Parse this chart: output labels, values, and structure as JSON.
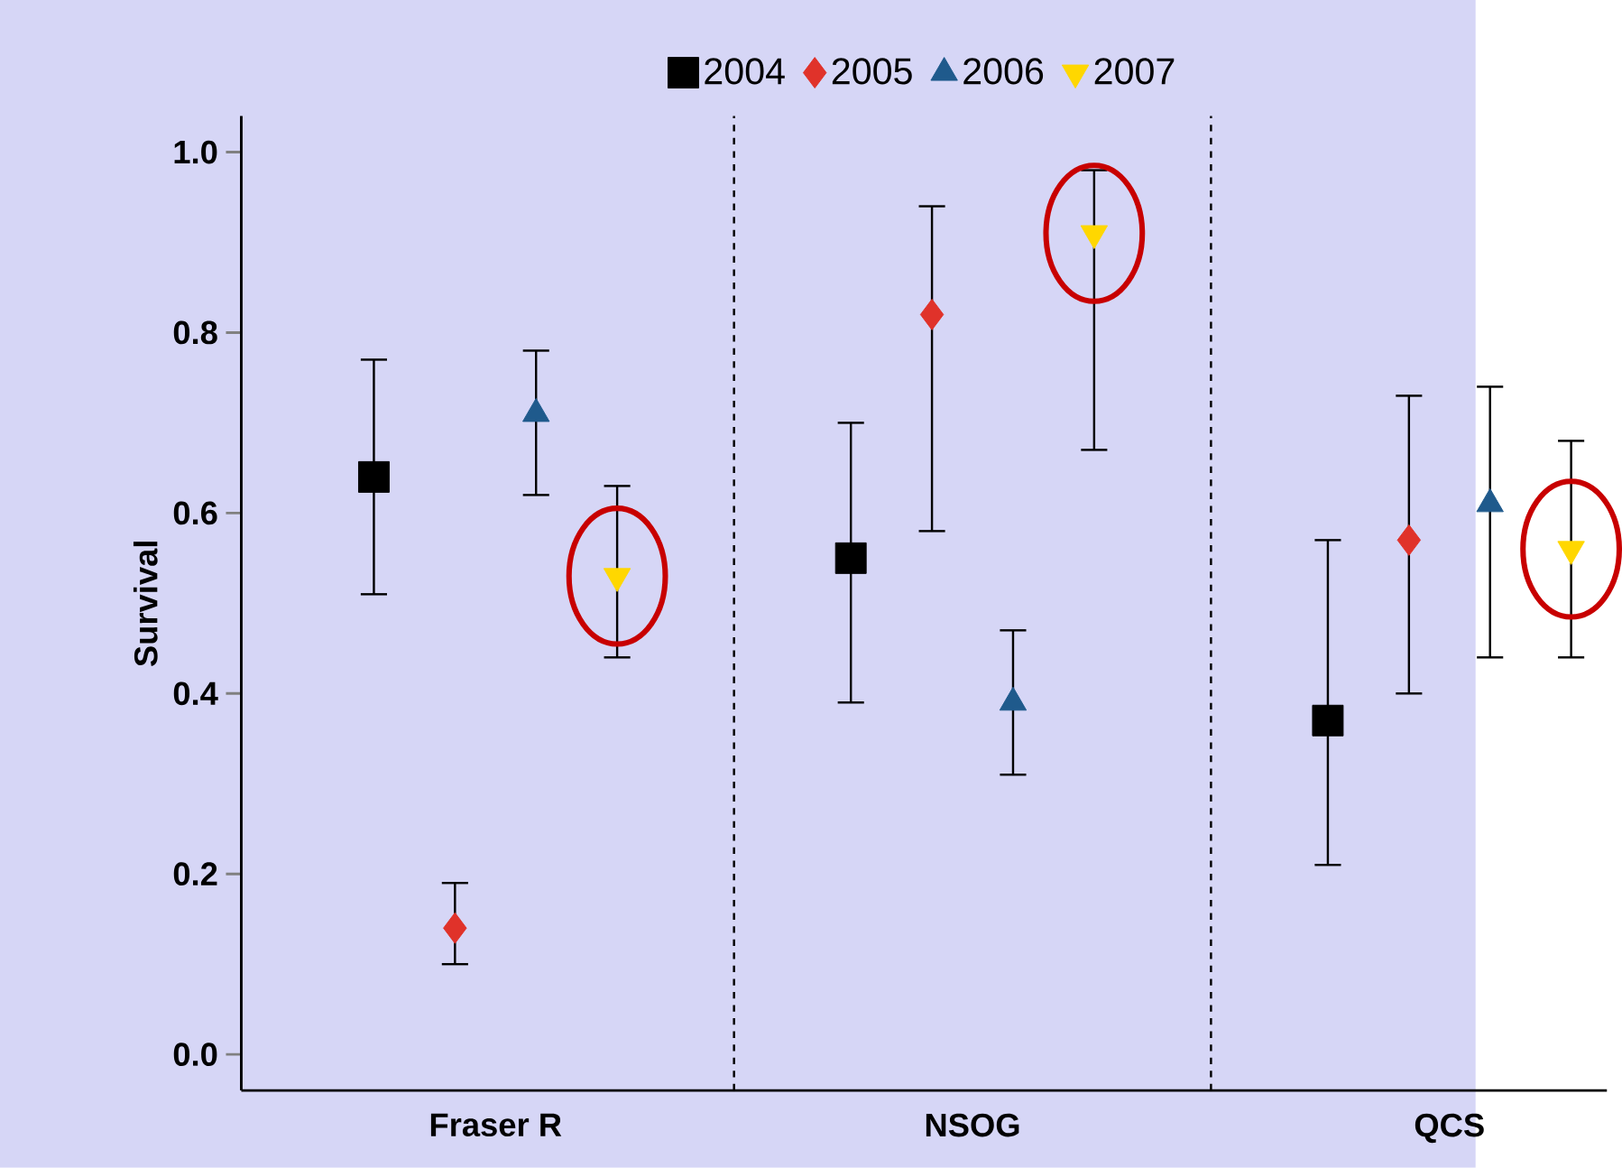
{
  "chart_data": {
    "type": "scatter",
    "ylabel": "Survival",
    "categories": [
      "Fraser R",
      "NSOG",
      "QCS"
    ],
    "ylim": [
      -0.04,
      1.04
    ],
    "yticks": [
      {
        "value": 0,
        "label": "0.0"
      },
      {
        "value": 0.2,
        "label": "0.2"
      },
      {
        "value": 0.4,
        "label": "0.4"
      },
      {
        "value": 0.6,
        "label": "0.6"
      },
      {
        "value": 0.8,
        "label": "0.8"
      },
      {
        "value": 1.0,
        "label": "1.0"
      }
    ],
    "legend": "top",
    "grid": false,
    "series": [
      {
        "name": "2004",
        "color": "#000000",
        "marker": "square",
        "values": [
          0.64,
          0.55,
          0.37
        ],
        "errors": [
          [
            0.51,
            0.77
          ],
          [
            0.39,
            0.7
          ],
          [
            0.21,
            0.57
          ]
        ]
      },
      {
        "name": "2005",
        "color": "#e0322a",
        "marker": "diamond",
        "values": [
          0.14,
          0.82,
          0.57
        ],
        "errors": [
          [
            0.1,
            0.19
          ],
          [
            0.58,
            0.94
          ],
          [
            0.4,
            0.73
          ]
        ]
      },
      {
        "name": "2006",
        "color": "#1f5a8c",
        "marker": "triangle",
        "values": [
          0.71,
          0.39,
          0.61
        ],
        "errors": [
          [
            0.62,
            0.78
          ],
          [
            0.31,
            0.47
          ],
          [
            0.44,
            0.74
          ]
        ]
      },
      {
        "name": "2007",
        "color": "#ffd700",
        "marker": "triangle down",
        "values": [
          0.53,
          0.91,
          0.56
        ],
        "errors": [
          [
            0.44,
            0.63
          ],
          [
            0.67,
            0.98
          ],
          [
            0.44,
            0.68
          ]
        ]
      }
    ]
  }
}
